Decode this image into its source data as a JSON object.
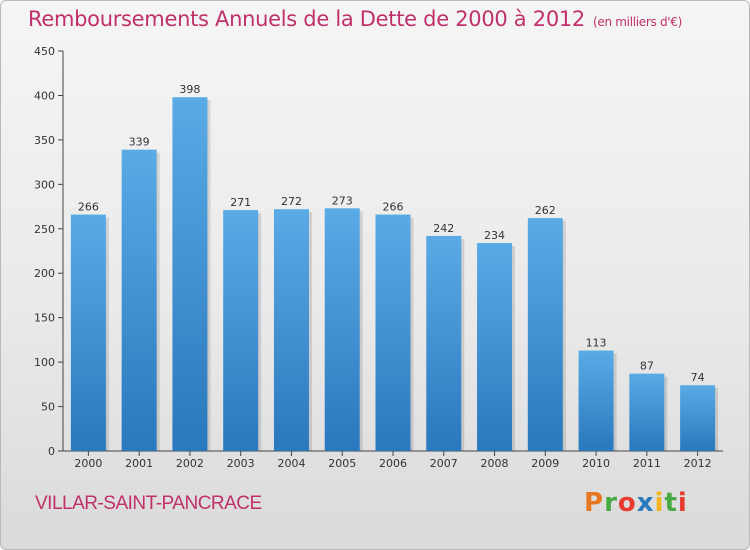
{
  "header": {
    "title": "Remboursements Annuels de la Dette de 2000 à 2012",
    "subtitle": "(en milliers d'€)"
  },
  "footer": {
    "commune": "VILLAR-SAINT-PANCRACE",
    "logo_text": "Proxiti"
  },
  "colors": {
    "title": "#c0306a",
    "bar_top": "#5aaae6",
    "bar_bottom": "#2a78bd",
    "logo_letters": [
      "#e87722",
      "#49a942",
      "#e63b2e",
      "#2a7ac0",
      "#f2b51e",
      "#49a942",
      "#e63b2e"
    ]
  },
  "chart_data": {
    "type": "bar",
    "title": "Remboursements Annuels de la Dette de 2000 à 2012",
    "xlabel": "",
    "ylabel": "",
    "categories": [
      "2000",
      "2001",
      "2002",
      "2003",
      "2004",
      "2005",
      "2006",
      "2007",
      "2008",
      "2009",
      "2010",
      "2011",
      "2012"
    ],
    "values": [
      266,
      339,
      398,
      271,
      272,
      273,
      266,
      242,
      234,
      262,
      113,
      87,
      74
    ],
    "ylim": [
      0,
      450
    ],
    "yticks": [
      0,
      50,
      100,
      150,
      200,
      250,
      300,
      350,
      400,
      450
    ],
    "grid": false,
    "legend": "none"
  }
}
